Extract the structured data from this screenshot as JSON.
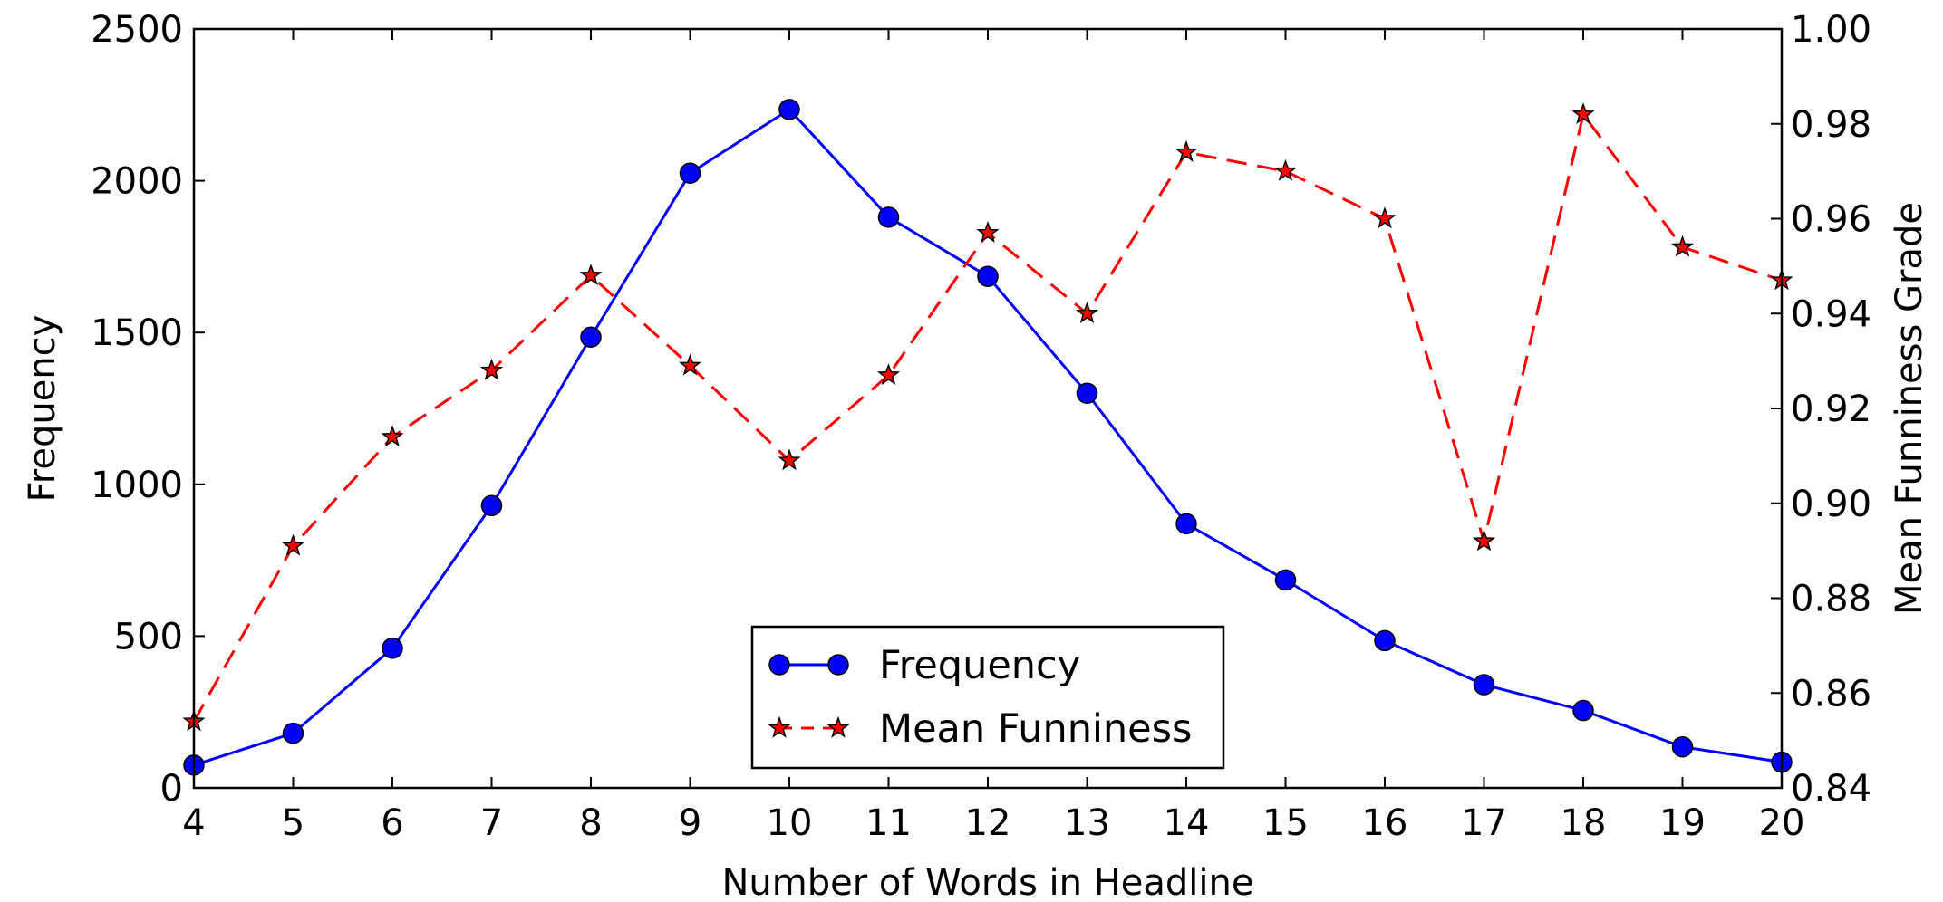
{
  "chart_data": {
    "type": "line",
    "title": "",
    "xlabel": "Number of Words in Headline",
    "ylabel": "Frequency",
    "ylabel_right": "Mean Funniness Grade",
    "x": [
      4,
      5,
      6,
      7,
      8,
      9,
      10,
      11,
      12,
      13,
      14,
      15,
      16,
      17,
      18,
      19,
      20
    ],
    "xlim": [
      4,
      20
    ],
    "ylim": [
      0,
      2500
    ],
    "ylim_right": [
      0.84,
      1.0
    ],
    "x_ticks": [
      4,
      5,
      6,
      7,
      8,
      9,
      10,
      11,
      12,
      13,
      14,
      15,
      16,
      17,
      18,
      19,
      20
    ],
    "y_ticks": [
      0,
      500,
      1000,
      1500,
      2000,
      2500
    ],
    "y_ticks_right": [
      "0.84",
      "0.86",
      "0.88",
      "0.90",
      "0.92",
      "0.94",
      "0.96",
      "0.98",
      "1.00"
    ],
    "grid": false,
    "legend_position": "bottom-center",
    "series": [
      {
        "name": "Frequency",
        "axis": "left",
        "color": "#0000ff",
        "line_style": "solid",
        "marker": "circle",
        "values": [
          75,
          180,
          460,
          930,
          1485,
          2025,
          2235,
          1880,
          1685,
          1300,
          870,
          685,
          485,
          340,
          255,
          135,
          85
        ]
      },
      {
        "name": "Mean Funniness",
        "axis": "right",
        "color": "#ff0000",
        "line_style": "dashed",
        "marker": "star",
        "values": [
          0.854,
          0.891,
          0.914,
          0.928,
          0.948,
          0.929,
          0.909,
          0.927,
          0.957,
          0.94,
          0.974,
          0.97,
          0.96,
          0.892,
          0.982,
          0.954,
          0.947
        ]
      }
    ]
  }
}
